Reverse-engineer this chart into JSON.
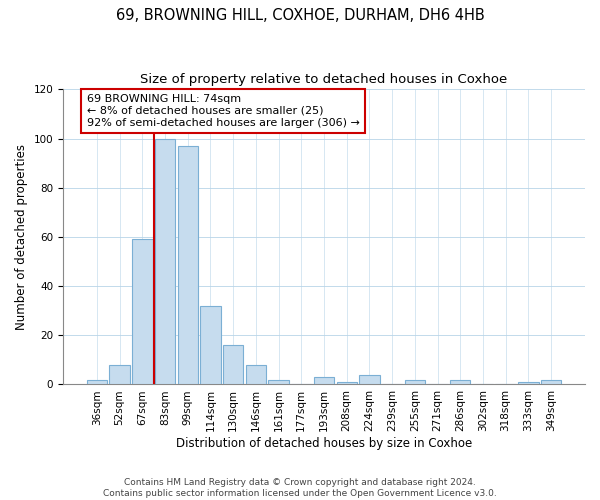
{
  "title": "69, BROWNING HILL, COXHOE, DURHAM, DH6 4HB",
  "subtitle": "Size of property relative to detached houses in Coxhoe",
  "xlabel": "Distribution of detached houses by size in Coxhoe",
  "ylabel": "Number of detached properties",
  "bin_labels": [
    "36sqm",
    "52sqm",
    "67sqm",
    "83sqm",
    "99sqm",
    "114sqm",
    "130sqm",
    "146sqm",
    "161sqm",
    "177sqm",
    "193sqm",
    "208sqm",
    "224sqm",
    "239sqm",
    "255sqm",
    "271sqm",
    "286sqm",
    "302sqm",
    "318sqm",
    "333sqm",
    "349sqm"
  ],
  "bar_heights": [
    2,
    8,
    59,
    100,
    97,
    32,
    16,
    8,
    2,
    0,
    3,
    1,
    4,
    0,
    2,
    0,
    2,
    0,
    0,
    1,
    2
  ],
  "bar_color": "#c6dcee",
  "bar_edge_color": "#7bafd4",
  "vline_color": "#cc0000",
  "annotation_line1": "69 BROWNING HILL: 74sqm",
  "annotation_line2": "← 8% of detached houses are smaller (25)",
  "annotation_line3": "92% of semi-detached houses are larger (306) →",
  "annotation_box_color": "white",
  "annotation_box_edge_color": "#cc0000",
  "ylim": [
    0,
    120
  ],
  "yticks": [
    0,
    20,
    40,
    60,
    80,
    100,
    120
  ],
  "footer_text": "Contains HM Land Registry data © Crown copyright and database right 2024.\nContains public sector information licensed under the Open Government Licence v3.0.",
  "title_fontsize": 10.5,
  "subtitle_fontsize": 9.5,
  "xlabel_fontsize": 8.5,
  "ylabel_fontsize": 8.5,
  "tick_fontsize": 7.5,
  "annotation_fontsize": 8,
  "footer_fontsize": 6.5,
  "vline_pos": 2.5
}
